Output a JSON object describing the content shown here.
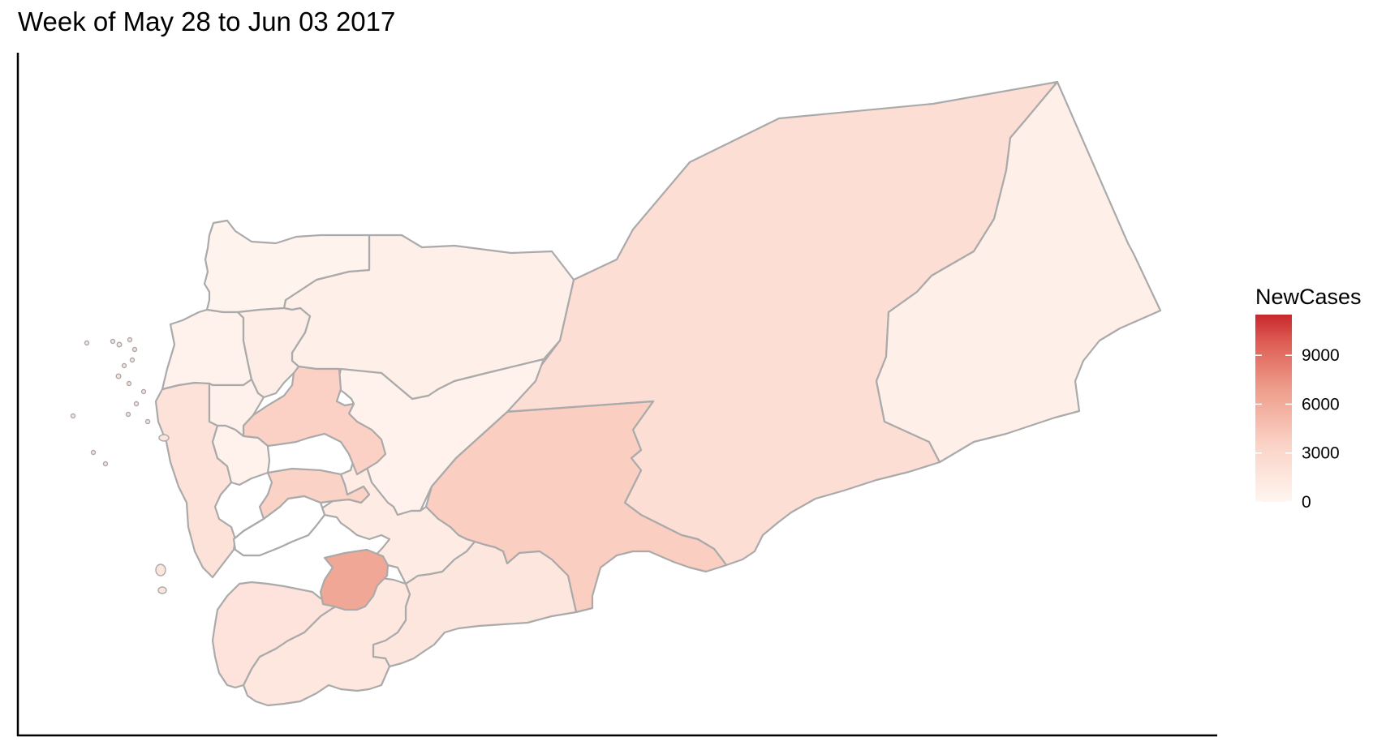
{
  "title": "Week of May 28 to Jun 03 2017",
  "legend": {
    "title": "NewCases",
    "ticks": [
      {
        "value": 0,
        "label": "0"
      },
      {
        "value": 3000,
        "label": "3000"
      },
      {
        "value": 6000,
        "label": "6000"
      },
      {
        "value": 9000,
        "label": "9000"
      }
    ],
    "min": 0,
    "max": 11500,
    "low_color": "#fff5f0",
    "high_color": "#c8282c"
  },
  "colors": {
    "border": "#aaaaaa",
    "axis": "#000000",
    "background": "#ffffff"
  },
  "regions": [
    {
      "id": "hadramawt",
      "cases": 2300
    },
    {
      "id": "al-mahrah",
      "cases": 600
    },
    {
      "id": "al-jawf",
      "cases": 650
    },
    {
      "id": "saada",
      "cases": 250
    },
    {
      "id": "marib",
      "cases": 300
    },
    {
      "id": "shabwah",
      "cases": 3800
    },
    {
      "id": "abyan",
      "cases": 1500
    },
    {
      "id": "al-bayda",
      "cases": 1000
    },
    {
      "id": "aden-lahj",
      "cases": 1400
    },
    {
      "id": "taizz",
      "cases": 1800
    },
    {
      "id": "ibb",
      "cases": 6300
    },
    {
      "id": "ad-dali",
      "cases": 3300
    },
    {
      "id": "dhamar",
      "cases": 3500
    },
    {
      "id": "sanaa",
      "cases": 3600
    },
    {
      "id": "al-hudaydah",
      "cases": 1900
    },
    {
      "id": "hajjah",
      "cases": 400
    },
    {
      "id": "amran",
      "cases": 800
    },
    {
      "id": "al-mahwit",
      "cases": 500
    },
    {
      "id": "raymah",
      "cases": 300
    },
    {
      "id": "hole",
      "cases": null
    }
  ]
}
